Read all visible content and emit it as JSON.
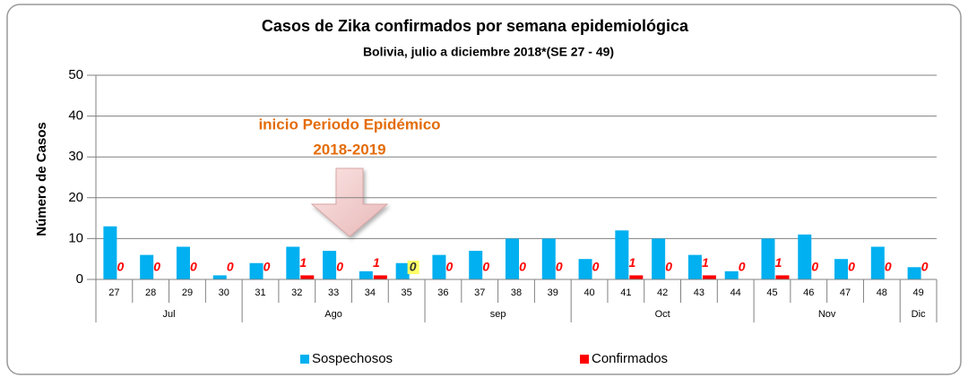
{
  "chart_data": {
    "type": "bar",
    "title": "Casos de Zika confirmados por semana epidemiológica",
    "subtitle": "Bolivia, julio a diciembre 2018*(SE 27 -  49)",
    "y_label": "Número de Casos",
    "annotation": [
      "inicio Periodo Epidémico",
      "2018-2019"
    ],
    "categories": [
      "27",
      "28",
      "29",
      "30",
      "31",
      "32",
      "33",
      "34",
      "35",
      "36",
      "37",
      "38",
      "39",
      "40",
      "41",
      "42",
      "43",
      "44",
      "45",
      "46",
      "47",
      "48",
      "49"
    ],
    "category_groups": [
      "Jul",
      "Jul",
      "Jul",
      "Jul",
      "Ago",
      "Ago",
      "Ago",
      "Ago",
      "Ago",
      "sep",
      "sep",
      "sep",
      "sep",
      "Oct",
      "Oct",
      "Oct",
      "Oct",
      "Oct",
      "Nov",
      "Nov",
      "Nov",
      "Nov",
      "Dic"
    ],
    "series": [
      {
        "name": "Sospechosos",
        "color": "#00b0f0",
        "values": [
          13,
          6,
          8,
          1,
          4,
          8,
          7,
          2,
          4,
          6,
          7,
          10,
          10,
          5,
          12,
          10,
          6,
          2,
          10,
          11,
          5,
          8,
          3
        ]
      },
      {
        "name": "Confirmados",
        "color": "#ff0000",
        "data_labels": true,
        "values": [
          0,
          0,
          0,
          0,
          0,
          1,
          0,
          1,
          0,
          0,
          0,
          0,
          0,
          0,
          1,
          0,
          1,
          0,
          1,
          0,
          0,
          0,
          0
        ]
      }
    ],
    "ylim": [
      0,
      50
    ],
    "yticks": [
      0,
      10,
      20,
      30,
      40,
      50
    ],
    "grid": true,
    "legend": "bottom"
  }
}
